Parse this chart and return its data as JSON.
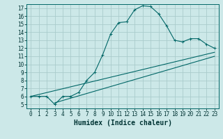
{
  "xlabel": "Humidex (Indice chaleur)",
  "ylabel": "",
  "bg_color": "#cce8e8",
  "grid_color": "#aacccc",
  "line_color": "#006666",
  "xlim": [
    -0.5,
    23.5
  ],
  "ylim": [
    4.5,
    17.5
  ],
  "xticks": [
    0,
    1,
    2,
    3,
    4,
    5,
    6,
    7,
    8,
    9,
    10,
    11,
    12,
    13,
    14,
    15,
    16,
    17,
    18,
    19,
    20,
    21,
    22,
    23
  ],
  "yticks": [
    5,
    6,
    7,
    8,
    9,
    10,
    11,
    12,
    13,
    14,
    15,
    16,
    17
  ],
  "line1_x": [
    0,
    1,
    2,
    3,
    4,
    5,
    6,
    7,
    8,
    9,
    10,
    11,
    12,
    13,
    14,
    15,
    16,
    17,
    18,
    19,
    20,
    21,
    22,
    23
  ],
  "line1_y": [
    6,
    6,
    6,
    5,
    6,
    6,
    6.5,
    8,
    9,
    11.2,
    13.8,
    15.2,
    15.3,
    16.8,
    17.3,
    17.2,
    16.3,
    14.8,
    13.0,
    12.8,
    13.2,
    13.2,
    12.5,
    12.0
  ],
  "line2_x": [
    0,
    23
  ],
  "line2_y": [
    6,
    11.5
  ],
  "line3_x": [
    3,
    23
  ],
  "line3_y": [
    5.2,
    11.0
  ],
  "marker": "+",
  "title_fontsize": 7,
  "xlabel_fontsize": 7,
  "tick_fontsize": 5.5
}
